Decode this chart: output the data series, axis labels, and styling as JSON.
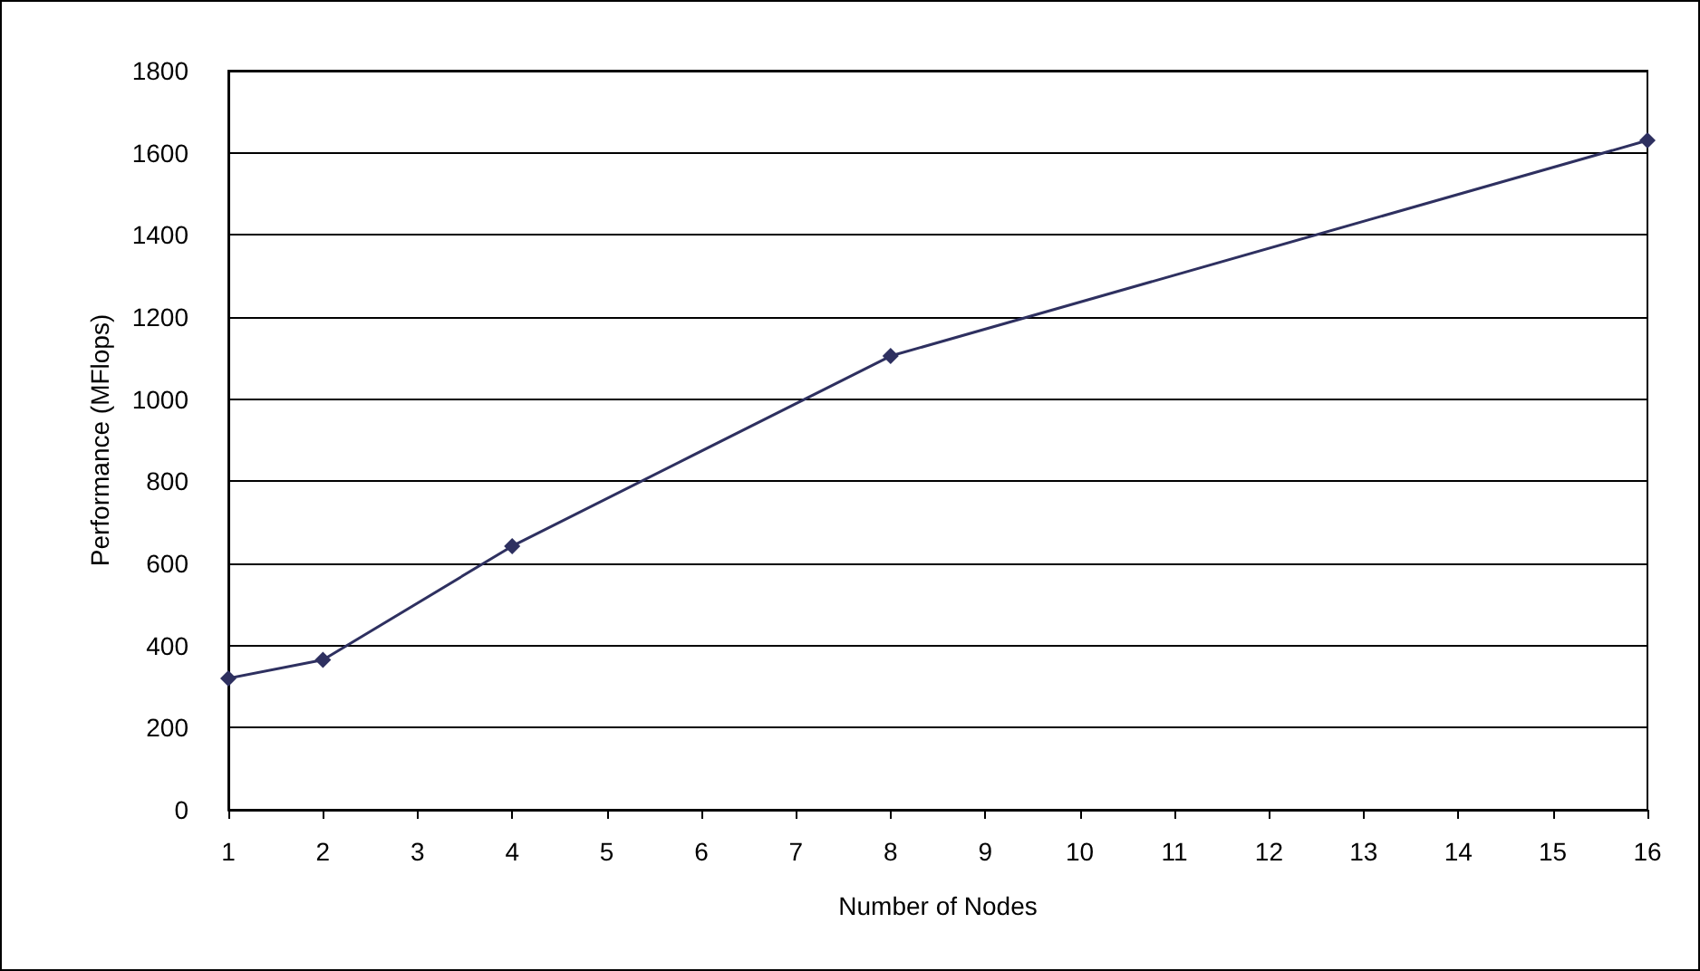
{
  "chart_data": {
    "type": "line",
    "xlabel": "Number of Nodes",
    "ylabel": "Performance (MFlops)",
    "x": [
      1,
      2,
      4,
      8,
      16
    ],
    "series": [
      {
        "color": "#2e3060",
        "values": [
          320,
          365,
          642,
          1105,
          1630
        ]
      }
    ],
    "xlim": [
      1,
      16
    ],
    "xticks": [
      1,
      2,
      3,
      4,
      5,
      6,
      7,
      8,
      9,
      10,
      11,
      12,
      13,
      14,
      15,
      16
    ],
    "ylim": [
      0,
      1800
    ],
    "yticks": [
      0,
      200,
      400,
      600,
      800,
      1000,
      1200,
      1400,
      1600,
      1800
    ],
    "grid": "y",
    "marker": "diamond",
    "line_style": "solid"
  }
}
